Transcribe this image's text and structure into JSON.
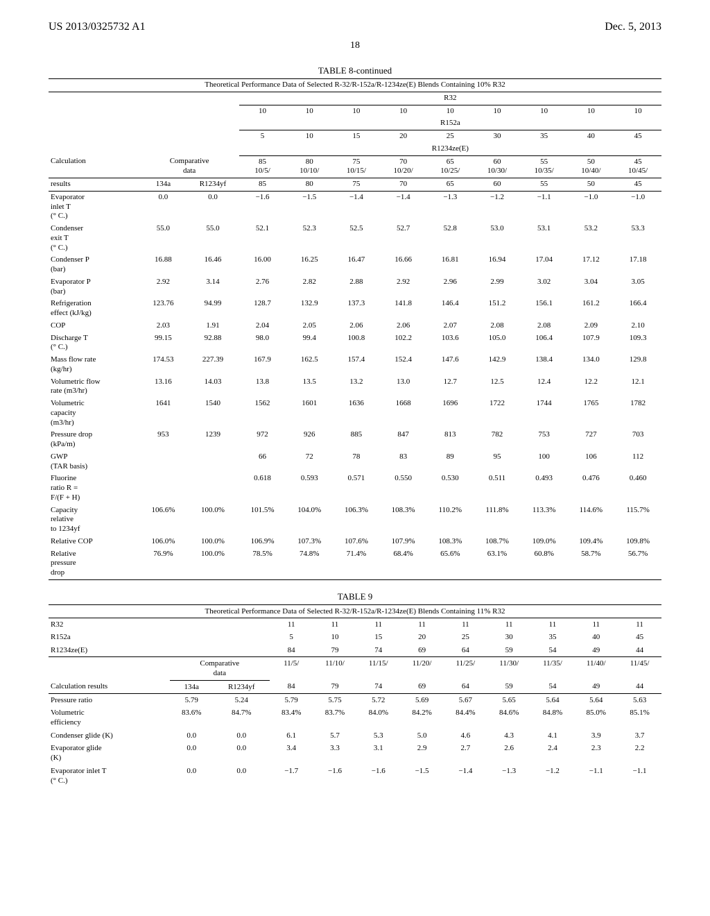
{
  "header": {
    "left": "US 2013/0325732 A1",
    "right": "Dec. 5, 2013"
  },
  "pagenum": "18",
  "table8": {
    "label": "TABLE 8-continued",
    "title": "Theoretical Performance Data of Selected R-32/R-152a/R-1234ze(E) Blends Containing 10% R32",
    "header1": {
      "label": "R32",
      "vals": [
        "10",
        "10",
        "10",
        "10",
        "10",
        "10",
        "10",
        "10",
        "10"
      ]
    },
    "header2": {
      "label": "R152a",
      "vals": [
        "5",
        "10",
        "15",
        "20",
        "25",
        "30",
        "35",
        "40",
        "45"
      ]
    },
    "header3": {
      "label": "R1234ze(E)",
      "ratios": [
        "85\n10/5/",
        "80\n10/10/",
        "75\n10/15/",
        "70\n10/20/",
        "65\n10/25/",
        "60\n10/30/",
        "55\n10/35/",
        "50\n10/40/",
        "45\n10/45/"
      ]
    },
    "calc_label": "Calculation",
    "comp_label": "Comparative\ndata",
    "results_label": "results",
    "comp_cols": [
      "134a",
      "R1234yf"
    ],
    "results_row": [
      "85",
      "80",
      "75",
      "70",
      "65",
      "60",
      "55",
      "50",
      "45"
    ],
    "rows": [
      {
        "label": "Evaporator\ninlet T\n(° C.)",
        "c": [
          "0.0",
          "0.0"
        ],
        "v": [
          "−1.6",
          "−1.5",
          "−1.4",
          "−1.4",
          "−1.3",
          "−1.2",
          "−1.1",
          "−1.0",
          "−1.0"
        ]
      },
      {
        "label": "Condenser\nexit T\n(° C.)",
        "c": [
          "55.0",
          "55.0"
        ],
        "v": [
          "52.1",
          "52.3",
          "52.5",
          "52.7",
          "52.8",
          "53.0",
          "53.1",
          "53.2",
          "53.3"
        ]
      },
      {
        "label": "Condenser P\n(bar)",
        "c": [
          "16.88",
          "16.46"
        ],
        "v": [
          "16.00",
          "16.25",
          "16.47",
          "16.66",
          "16.81",
          "16.94",
          "17.04",
          "17.12",
          "17.18"
        ]
      },
      {
        "label": "Evaporator P\n(bar)",
        "c": [
          "2.92",
          "3.14"
        ],
        "v": [
          "2.76",
          "2.82",
          "2.88",
          "2.92",
          "2.96",
          "2.99",
          "3.02",
          "3.04",
          "3.05"
        ]
      },
      {
        "label": "Refrigeration\neffect (kJ/kg)",
        "c": [
          "123.76",
          "94.99"
        ],
        "v": [
          "128.7",
          "132.9",
          "137.3",
          "141.8",
          "146.4",
          "151.2",
          "156.1",
          "161.2",
          "166.4"
        ]
      },
      {
        "label": "COP",
        "c": [
          "2.03",
          "1.91"
        ],
        "v": [
          "2.04",
          "2.05",
          "2.06",
          "2.06",
          "2.07",
          "2.08",
          "2.08",
          "2.09",
          "2.10"
        ]
      },
      {
        "label": "Discharge T\n(° C.)",
        "c": [
          "99.15",
          "92.88"
        ],
        "v": [
          "98.0",
          "99.4",
          "100.8",
          "102.2",
          "103.6",
          "105.0",
          "106.4",
          "107.9",
          "109.3"
        ]
      },
      {
        "label": "Mass flow rate\n(kg/hr)",
        "c": [
          "174.53",
          "227.39"
        ],
        "v": [
          "167.9",
          "162.5",
          "157.4",
          "152.4",
          "147.6",
          "142.9",
          "138.4",
          "134.0",
          "129.8"
        ]
      },
      {
        "label": "Volumetric flow\nrate (m3/hr)",
        "c": [
          "13.16",
          "14.03"
        ],
        "v": [
          "13.8",
          "13.5",
          "13.2",
          "13.0",
          "12.7",
          "12.5",
          "12.4",
          "12.2",
          "12.1"
        ]
      },
      {
        "label": "Volumetric\ncapacity\n(m3/hr)",
        "c": [
          "1641",
          "1540"
        ],
        "v": [
          "1562",
          "1601",
          "1636",
          "1668",
          "1696",
          "1722",
          "1744",
          "1765",
          "1782"
        ]
      },
      {
        "label": "Pressure drop\n(kPa/m)",
        "c": [
          "953",
          "1239"
        ],
        "v": [
          "972",
          "926",
          "885",
          "847",
          "813",
          "782",
          "753",
          "727",
          "703"
        ]
      },
      {
        "label": "GWP\n(TAR basis)",
        "c": [
          "",
          ""
        ],
        "v": [
          "66",
          "72",
          "78",
          "83",
          "89",
          "95",
          "100",
          "106",
          "112"
        ]
      },
      {
        "label": "Fluorine\nratio R =\nF/(F + H)",
        "c": [
          "",
          ""
        ],
        "v": [
          "0.618",
          "0.593",
          "0.571",
          "0.550",
          "0.530",
          "0.511",
          "0.493",
          "0.476",
          "0.460"
        ]
      },
      {
        "label": "Capacity\nrelative\nto 1234yf",
        "c": [
          "106.6%",
          "100.0%"
        ],
        "v": [
          "101.5%",
          "104.0%",
          "106.3%",
          "108.3%",
          "110.2%",
          "111.8%",
          "113.3%",
          "114.6%",
          "115.7%"
        ]
      },
      {
        "label": "Relative COP",
        "c": [
          "106.0%",
          "100.0%"
        ],
        "v": [
          "106.9%",
          "107.3%",
          "107.6%",
          "107.9%",
          "108.3%",
          "108.7%",
          "109.0%",
          "109.4%",
          "109.8%"
        ]
      },
      {
        "label": "Relative\npressure\ndrop",
        "c": [
          "76.9%",
          "100.0%"
        ],
        "v": [
          "78.5%",
          "74.8%",
          "71.4%",
          "68.4%",
          "65.6%",
          "63.1%",
          "60.8%",
          "58.7%",
          "56.7%"
        ]
      }
    ]
  },
  "table9": {
    "label": "TABLE 9",
    "title": "Theoretical Performance Data of Selected R-32/R-152a/R-1234ze(E) Blends Containing 11% R32",
    "comp_rows": [
      {
        "label": "R32",
        "vals": [
          "11",
          "11",
          "11",
          "11",
          "11",
          "11",
          "11",
          "11",
          "11"
        ]
      },
      {
        "label": "R152a",
        "vals": [
          "5",
          "10",
          "15",
          "20",
          "25",
          "30",
          "35",
          "40",
          "45"
        ]
      },
      {
        "label": "R1234ze(E)",
        "vals": [
          "84",
          "79",
          "74",
          "69",
          "64",
          "59",
          "54",
          "49",
          "44"
        ]
      }
    ],
    "comp_label": "Comparative\ndata",
    "ratio_row": [
      "11/5/",
      "11/10/",
      "11/15/",
      "11/20/",
      "11/25/",
      "11/30/",
      "11/35/",
      "11/40/",
      "11/45/"
    ],
    "results_label": "Calculation results",
    "comp_cols": [
      "134a",
      "R1234yf"
    ],
    "results_row": [
      "84",
      "79",
      "74",
      "69",
      "64",
      "59",
      "54",
      "49",
      "44"
    ],
    "rows": [
      {
        "label": "Pressure ratio",
        "c": [
          "5.79",
          "5.24"
        ],
        "v": [
          "5.79",
          "5.75",
          "5.72",
          "5.69",
          "5.67",
          "5.65",
          "5.64",
          "5.64",
          "5.63"
        ]
      },
      {
        "label": "Volumetric\nefficiency",
        "c": [
          "83.6%",
          "84.7%"
        ],
        "v": [
          "83.4%",
          "83.7%",
          "84.0%",
          "84.2%",
          "84.4%",
          "84.6%",
          "84.8%",
          "85.0%",
          "85.1%"
        ]
      },
      {
        "label": "Condenser glide (K)",
        "c": [
          "0.0",
          "0.0"
        ],
        "v": [
          "6.1",
          "5.7",
          "5.3",
          "5.0",
          "4.6",
          "4.3",
          "4.1",
          "3.9",
          "3.7"
        ]
      },
      {
        "label": "Evaporator glide\n(K)",
        "c": [
          "0.0",
          "0.0"
        ],
        "v": [
          "3.4",
          "3.3",
          "3.1",
          "2.9",
          "2.7",
          "2.6",
          "2.4",
          "2.3",
          "2.2"
        ]
      },
      {
        "label": "Evaporator inlet T\n(° C.)",
        "c": [
          "0.0",
          "0.0"
        ],
        "v": [
          "−1.7",
          "−1.6",
          "−1.6",
          "−1.5",
          "−1.4",
          "−1.3",
          "−1.2",
          "−1.1",
          "−1.1"
        ]
      }
    ]
  }
}
